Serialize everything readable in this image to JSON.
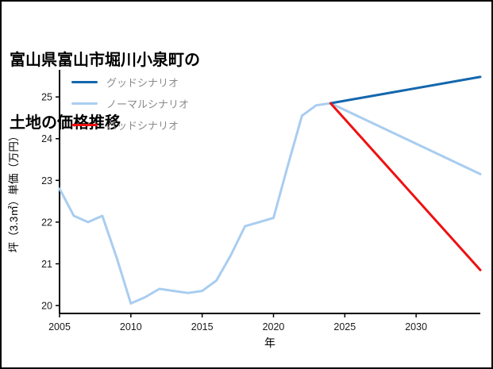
{
  "chart_data": {
    "type": "line",
    "title_lines": [
      "富山県富山市堀川小泉町の",
      "土地の価格推移"
    ],
    "xlabel": "年",
    "ylabel": "坪（3.3㎡）単価（万円）",
    "xlim": [
      2005,
      2034.5
    ],
    "ylim": [
      19.81,
      25.65
    ],
    "xticks": [
      2005,
      2010,
      2015,
      2020,
      2025,
      2030
    ],
    "yticks": [
      20,
      21,
      22,
      23,
      24,
      25
    ],
    "grid": false,
    "legend_position": "top-left",
    "axis_color": "#000000",
    "tick_label_color": "#1a1a1a",
    "legend_text_color": "#8a8a8a",
    "draw_order": [
      1,
      0,
      2
    ],
    "series": [
      {
        "name": "グッドシナリオ",
        "color": "#1467ad",
        "width": 3,
        "x": [
          2024,
          2034.5
        ],
        "y": [
          24.85,
          25.48
        ]
      },
      {
        "name": "ノーマルシナリオ",
        "color": "#a9cdf0",
        "width": 3,
        "x": [
          2005,
          2006,
          2007,
          2008,
          2009,
          2010,
          2011,
          2012,
          2013,
          2014,
          2015,
          2016,
          2017,
          2018,
          2019,
          2020,
          2021,
          2022,
          2023,
          2024,
          2034.5
        ],
        "y": [
          22.8,
          22.15,
          22.0,
          22.15,
          21.15,
          20.05,
          20.2,
          20.4,
          20.35,
          20.3,
          20.35,
          20.6,
          21.2,
          21.9,
          22.0,
          22.1,
          23.35,
          24.55,
          24.8,
          24.85,
          23.15
        ]
      },
      {
        "name": "バッドシナリオ",
        "color": "#ee1111",
        "width": 3,
        "x": [
          2024,
          2034.5
        ],
        "y": [
          24.85,
          20.85
        ]
      }
    ]
  }
}
